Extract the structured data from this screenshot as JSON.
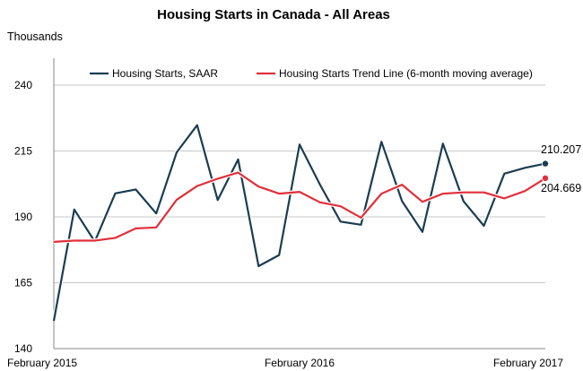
{
  "chart_data": {
    "type": "line",
    "title": "Housing Starts in Canada - All Areas",
    "ylabel": "Thousands",
    "ylim": [
      140,
      240
    ],
    "yticks": [
      140,
      165,
      190,
      215,
      240
    ],
    "x_tick_labels": [
      {
        "index": 0,
        "label": "February 2015"
      },
      {
        "index": 12,
        "label": "February 2016"
      },
      {
        "index": 24,
        "label": "February 2017"
      }
    ],
    "grid": "horizontal",
    "legend_position": "top",
    "colors": {
      "starts": "#1a3d52",
      "trend": "#e0303a",
      "grid": "#c8c8c8"
    },
    "series": [
      {
        "name": "Housing Starts, SAAR",
        "key": "starts",
        "values": [
          150.5,
          192.8,
          180.6,
          198.9,
          200.4,
          191.3,
          214.5,
          224.8,
          196.4,
          211.8,
          171.3,
          175.5,
          217.5,
          202.2,
          188.2,
          187.0,
          218.5,
          196.0,
          184.3,
          217.8,
          196.0,
          186.6,
          206.4,
          208.6,
          210.207
        ]
      },
      {
        "name": "Housing Starts Trend Line (6-month moving average)",
        "key": "trend",
        "values": [
          180.5,
          181.0,
          181.0,
          182.0,
          185.6,
          186.0,
          196.5,
          201.7,
          204.5,
          206.8,
          201.5,
          198.8,
          199.5,
          195.5,
          194.0,
          189.7,
          198.8,
          202.2,
          195.7,
          198.8,
          199.3,
          199.3,
          197.0,
          199.8,
          204.669
        ]
      }
    ],
    "end_labels": {
      "starts": "210.207",
      "trend": "204.669"
    }
  }
}
